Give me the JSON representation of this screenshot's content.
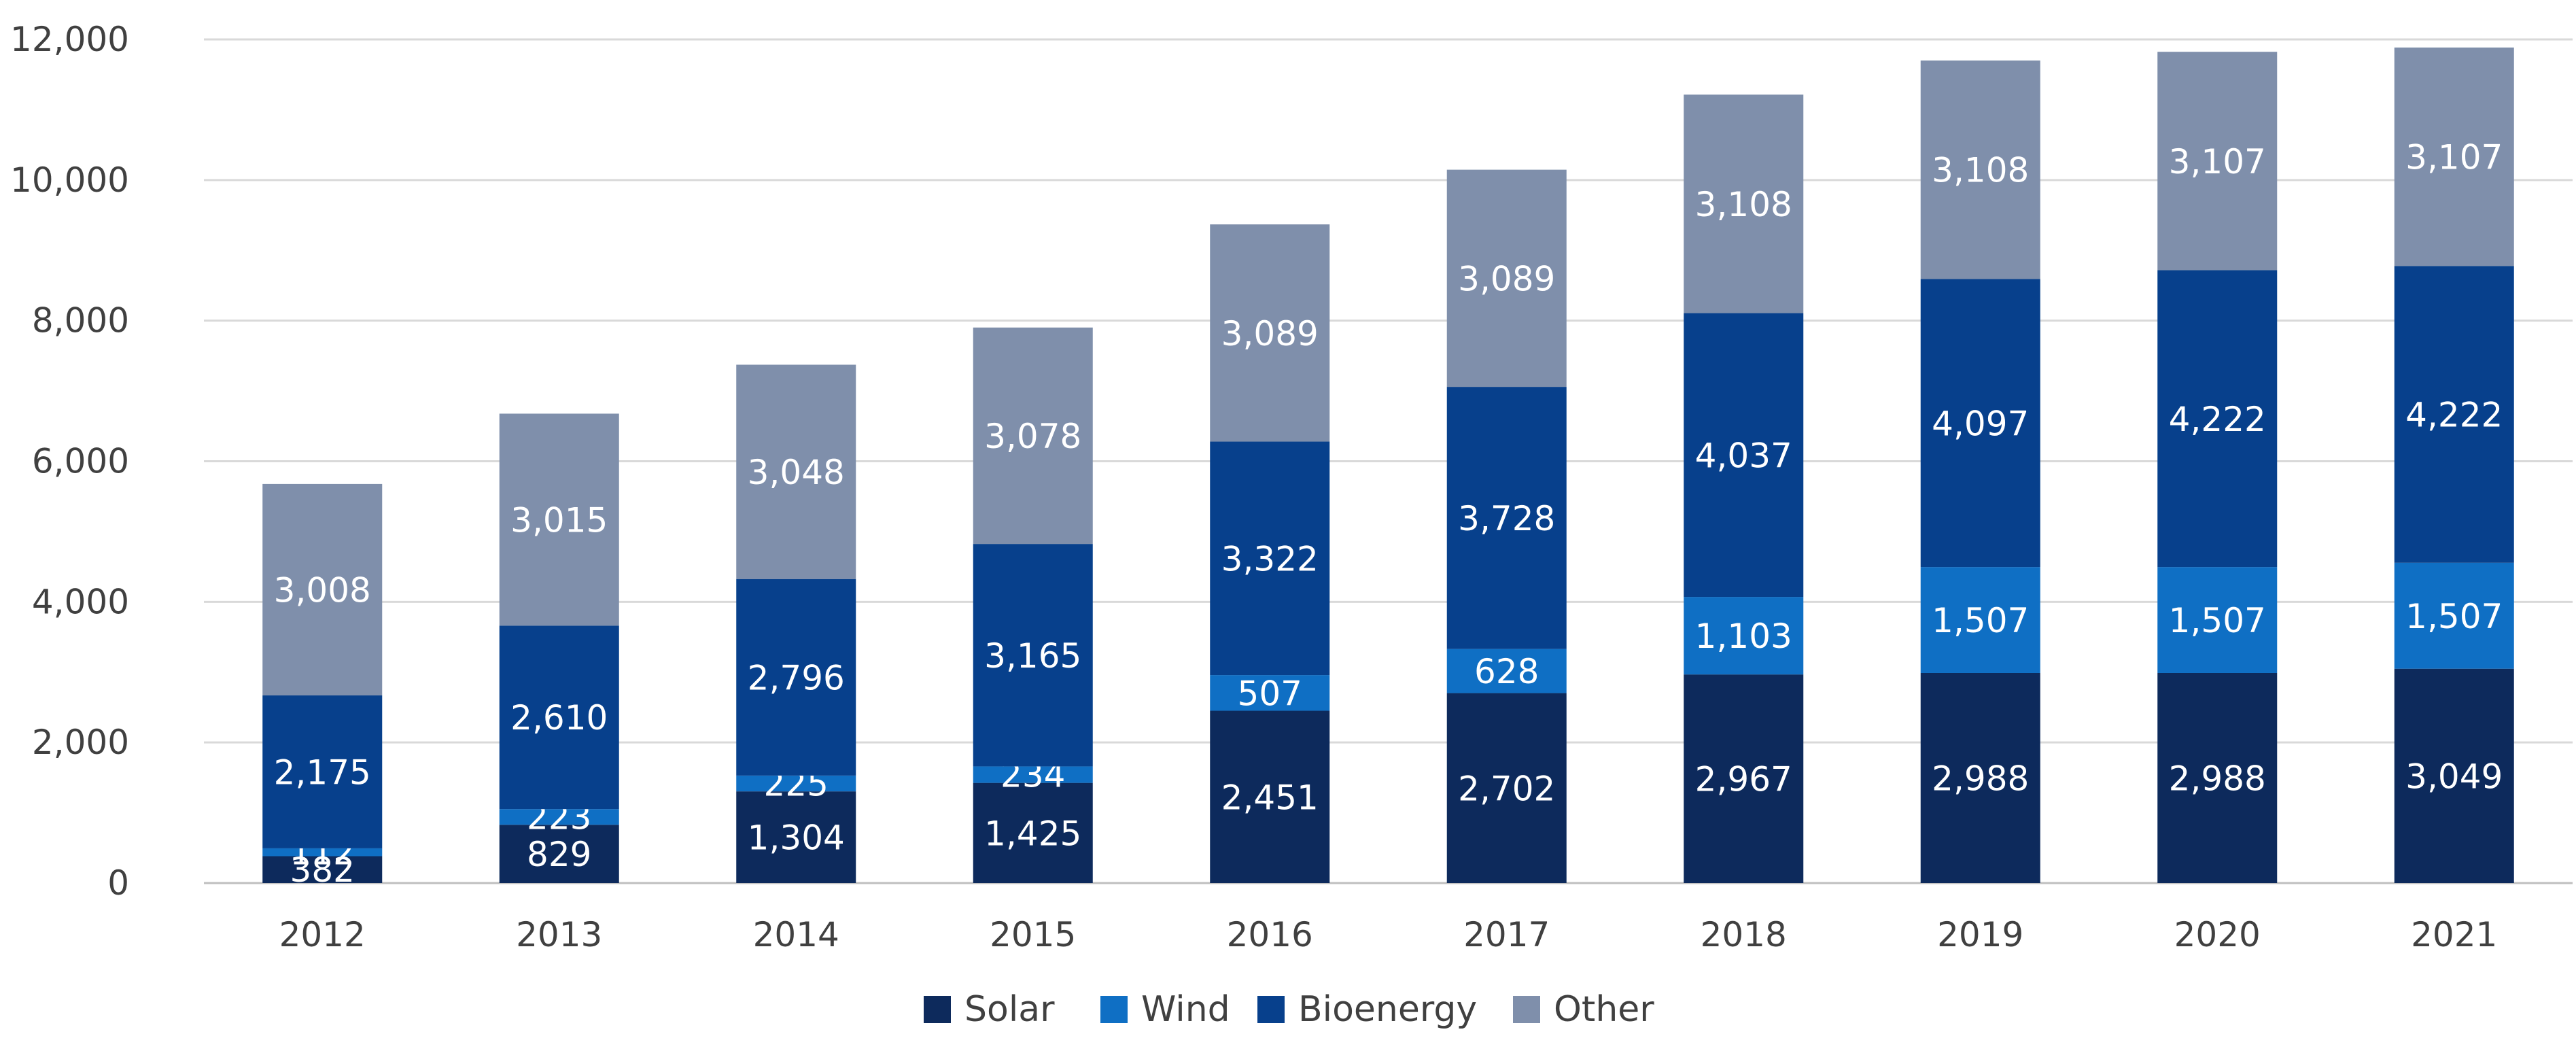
{
  "chart_data": {
    "type": "bar",
    "stacked": true,
    "categories": [
      "2012",
      "2013",
      "2014",
      "2015",
      "2016",
      "2017",
      "2018",
      "2019",
      "2020",
      "2021"
    ],
    "series": [
      {
        "name": "Solar",
        "color": "#0d2a5c",
        "values": [
          382,
          829,
          1304,
          1425,
          2451,
          2702,
          2967,
          2988,
          2988,
          3049
        ],
        "labels": [
          "382",
          "829",
          "1,304",
          "1,425",
          "2,451",
          "2,702",
          "2,967",
          "2,988",
          "2,988",
          "3,049"
        ]
      },
      {
        "name": "Wind",
        "color": "#0f6fc4",
        "values": [
          112,
          223,
          225,
          234,
          507,
          628,
          1103,
          1507,
          1507,
          1507
        ],
        "labels": [
          "112",
          "223",
          "225",
          "234",
          "507",
          "628",
          "1,103",
          "1,507",
          "1,507",
          "1,507"
        ]
      },
      {
        "name": "Bioenergy",
        "color": "#07408c",
        "values": [
          2175,
          2610,
          2796,
          3165,
          3322,
          3728,
          4037,
          4097,
          4222,
          4222
        ],
        "labels": [
          "2,175",
          "2,610",
          "2,796",
          "3,165",
          "3,322",
          "3,728",
          "4,037",
          "4,097",
          "4,222",
          "4,222"
        ]
      },
      {
        "name": "Other",
        "color": "#7f8fab",
        "values": [
          3008,
          3015,
          3048,
          3078,
          3089,
          3089,
          3108,
          3108,
          3107,
          3107
        ],
        "labels": [
          "3,008",
          "3,015",
          "3,048",
          "3,078",
          "3,089",
          "3,089",
          "3,108",
          "3,108",
          "3,107",
          "3,107"
        ]
      }
    ],
    "yticks": [
      0,
      2000,
      4000,
      6000,
      8000,
      10000,
      12000
    ],
    "ytick_labels": [
      "0",
      "2,000",
      "4,000",
      "6,000",
      "8,000",
      "10,000",
      "12,000"
    ],
    "ylim": [
      0,
      12000
    ],
    "grid": true,
    "legend_position": "bottom-center",
    "title": "",
    "xlabel": "",
    "ylabel": ""
  }
}
